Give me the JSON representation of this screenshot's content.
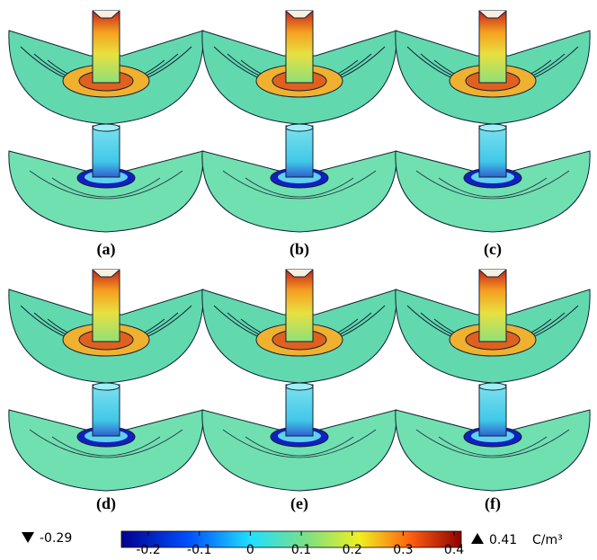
{
  "panels": [
    {
      "label": "(a)"
    },
    {
      "label": "(b)"
    },
    {
      "label": "(c)"
    },
    {
      "label": "(d)"
    },
    {
      "label": "(e)"
    },
    {
      "label": "(f)"
    }
  ],
  "colorbar": {
    "min": -0.29,
    "max": 0.41,
    "unit": "C/m³",
    "lim": [
      -0.253,
      0.414
    ],
    "ticks": [
      -0.2,
      -0.1,
      0,
      0.1,
      0.2,
      0.3,
      0.4
    ]
  }
}
